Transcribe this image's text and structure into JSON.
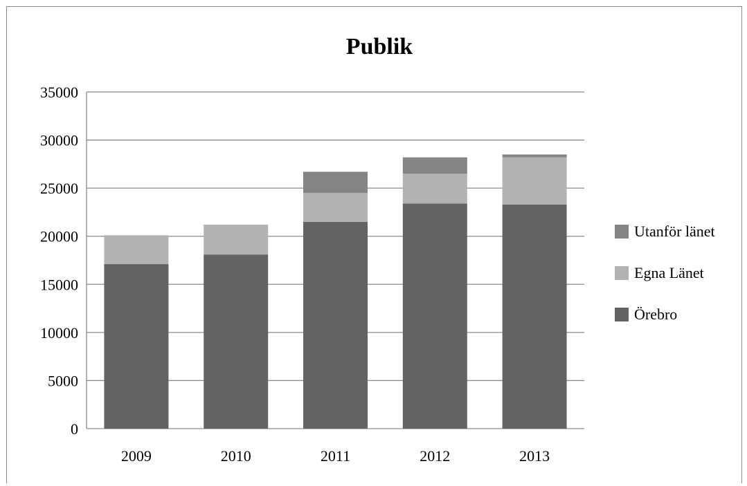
{
  "chart_data": {
    "type": "bar",
    "stacked": true,
    "title": "Publik",
    "xlabel": "",
    "ylabel": "",
    "categories": [
      "2009",
      "2010",
      "2011",
      "2012",
      "2013"
    ],
    "ylim": [
      0,
      35000
    ],
    "yticks": [
      0,
      5000,
      10000,
      15000,
      20000,
      25000,
      30000,
      35000
    ],
    "grid": true,
    "legend_position": "right",
    "series": [
      {
        "name": "Örebro",
        "color": "#636363",
        "values": [
          17100,
          18100,
          21500,
          23400,
          23300
        ]
      },
      {
        "name": "Egna Länet",
        "color": "#b2b2b2",
        "values": [
          3000,
          3100,
          3000,
          3100,
          4900
        ]
      },
      {
        "name": "Utanför länet",
        "color": "#848484",
        "values": [
          0,
          0,
          2200,
          1700,
          300
        ]
      }
    ],
    "legend_order": [
      "Utanför länet",
      "Egna Länet",
      "Örebro"
    ]
  }
}
